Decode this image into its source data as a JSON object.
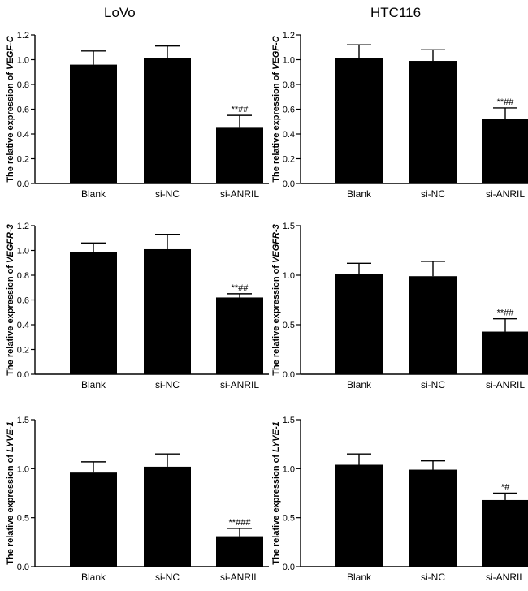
{
  "column_titles": [
    "LoVo",
    "HTC116"
  ],
  "chart_data": [
    {
      "type": "bar",
      "column": "LoVo",
      "gene": "VEGF-C",
      "ylabel_prefix": "The relative expression of ",
      "categories": [
        "Blank",
        "si-NC",
        "si-ANRIL"
      ],
      "values": [
        0.96,
        1.01,
        0.45
      ],
      "errors": [
        0.11,
        0.1,
        0.1
      ],
      "annotations": [
        "",
        "",
        "**##"
      ],
      "ylim": [
        0,
        1.2
      ],
      "yticks": [
        "0.0",
        "0.2",
        "0.4",
        "0.6",
        "0.8",
        "1.0",
        "1.2"
      ]
    },
    {
      "type": "bar",
      "column": "HTC116",
      "gene": "VEGF-C",
      "ylabel_prefix": "The relative expression of ",
      "categories": [
        "Blank",
        "si-NC",
        "si-ANRIL"
      ],
      "values": [
        1.01,
        0.99,
        0.52
      ],
      "errors": [
        0.11,
        0.09,
        0.09
      ],
      "annotations": [
        "",
        "",
        "**##"
      ],
      "ylim": [
        0,
        1.2
      ],
      "yticks": [
        "0.0",
        "0.2",
        "0.4",
        "0.6",
        "0.8",
        "1.0",
        "1.2"
      ]
    },
    {
      "type": "bar",
      "column": "LoVo",
      "gene": "VEGFR-3",
      "ylabel_prefix": "The relative expression of ",
      "categories": [
        "Blank",
        "si-NC",
        "si-ANRIL"
      ],
      "values": [
        0.99,
        1.01,
        0.62
      ],
      "errors": [
        0.07,
        0.12,
        0.03
      ],
      "annotations": [
        "",
        "",
        "**##"
      ],
      "ylim": [
        0,
        1.2
      ],
      "yticks": [
        "0.0",
        "0.2",
        "0.4",
        "0.6",
        "0.8",
        "1.0",
        "1.2"
      ]
    },
    {
      "type": "bar",
      "column": "HTC116",
      "gene": "VEGFR-3",
      "ylabel_prefix": "The relative expression of ",
      "categories": [
        "Blank",
        "si-NC",
        "si-ANRIL"
      ],
      "values": [
        1.01,
        0.99,
        0.43
      ],
      "errors": [
        0.11,
        0.15,
        0.13
      ],
      "annotations": [
        "",
        "",
        "**##"
      ],
      "ylim": [
        0,
        1.5
      ],
      "yticks": [
        "0.0",
        "0.5",
        "1.0",
        "1.5"
      ]
    },
    {
      "type": "bar",
      "column": "LoVo",
      "gene": "LYVE-1",
      "ylabel_prefix": "The relative expression of ",
      "categories": [
        "Blank",
        "si-NC",
        "si-ANRIL"
      ],
      "values": [
        0.96,
        1.02,
        0.31
      ],
      "errors": [
        0.11,
        0.13,
        0.08
      ],
      "annotations": [
        "",
        "",
        "**###"
      ],
      "ylim": [
        0,
        1.5
      ],
      "yticks": [
        "0.0",
        "0.5",
        "1.0",
        "1.5"
      ]
    },
    {
      "type": "bar",
      "column": "HTC116",
      "gene": "LYVE-1",
      "ylabel_prefix": "The relative expression of ",
      "categories": [
        "Blank",
        "si-NC",
        "si-ANRIL"
      ],
      "values": [
        1.04,
        0.99,
        0.68
      ],
      "errors": [
        0.11,
        0.09,
        0.07
      ],
      "annotations": [
        "",
        "",
        "*#"
      ],
      "ylim": [
        0,
        1.5
      ],
      "yticks": [
        "0.0",
        "0.5",
        "1.0",
        "1.5"
      ]
    }
  ]
}
